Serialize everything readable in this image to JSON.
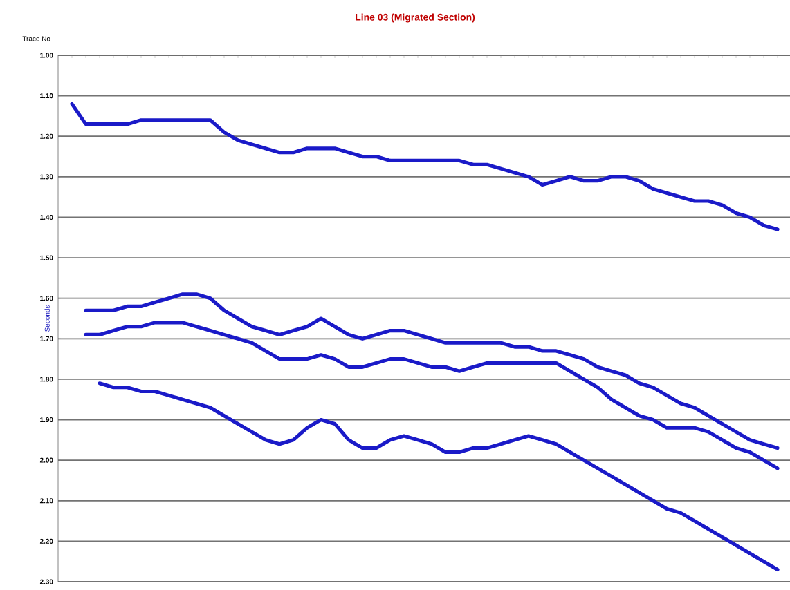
{
  "chart_data": {
    "type": "line",
    "title": "Line 03 (Migrated Section)",
    "xlabel": "Trace No",
    "ylabel": "Seconds",
    "categories": [
      null,
      null,
      null,
      null,
      null,
      null,
      null,
      null,
      null,
      null,
      null,
      null,
      null,
      null,
      null,
      null,
      null,
      null,
      null,
      null,
      null,
      null,
      null,
      null,
      null,
      null,
      null,
      null,
      null,
      null,
      null,
      null,
      null,
      null,
      null,
      null,
      null,
      null,
      null,
      null,
      null,
      null,
      null,
      null,
      null,
      null,
      null,
      null,
      null,
      null,
      null,
      null
    ],
    "ylim": [
      2.3,
      1.0
    ],
    "yticks": [
      {
        "value": 1.0,
        "label": "1.00"
      },
      {
        "value": 1.1,
        "label": "1.10"
      },
      {
        "value": 1.2,
        "label": "1.20"
      },
      {
        "value": 1.3,
        "label": "1.30"
      },
      {
        "value": 1.4,
        "label": "1.40"
      },
      {
        "value": 1.5,
        "label": "1.50"
      },
      {
        "value": 1.6,
        "label": "1.60"
      },
      {
        "value": 1.7,
        "label": "1.70"
      },
      {
        "value": 1.8,
        "label": "1.80"
      },
      {
        "value": 1.9,
        "label": "1.90"
      },
      {
        "value": 2.0,
        "label": "2.00"
      },
      {
        "value": 2.1,
        "label": "2.10"
      },
      {
        "value": 2.2,
        "label": "2.20"
      },
      {
        "value": 2.3,
        "label": "2.30"
      }
    ],
    "grid": "y",
    "marker": "none",
    "line_style": "solid",
    "series": [
      {
        "color": "#1a1ac8",
        "values": [
          1.12,
          1.17,
          1.17,
          1.17,
          1.17,
          1.16,
          1.16,
          1.16,
          1.16,
          1.16,
          1.16,
          1.19,
          1.21,
          1.22,
          1.23,
          1.24,
          1.24,
          1.23,
          1.23,
          1.23,
          1.24,
          1.25,
          1.25,
          1.26,
          1.26,
          1.26,
          1.26,
          1.26,
          1.26,
          1.27,
          1.27,
          1.28,
          1.29,
          1.3,
          1.32,
          1.31,
          1.3,
          1.31,
          1.31,
          1.3,
          1.3,
          1.31,
          1.33,
          1.34,
          1.35,
          1.36,
          1.36,
          1.37,
          1.39,
          1.4,
          1.42,
          1.43
        ]
      },
      {
        "color": "#1a1ac8",
        "values": [
          null,
          1.63,
          1.63,
          1.63,
          1.62,
          1.62,
          1.61,
          1.6,
          1.59,
          1.59,
          1.6,
          1.63,
          1.65,
          1.67,
          1.68,
          1.69,
          1.68,
          1.67,
          1.65,
          1.67,
          1.69,
          1.7,
          1.69,
          1.68,
          1.68,
          1.69,
          1.7,
          1.71,
          1.71,
          1.71,
          1.71,
          1.71,
          1.72,
          1.72,
          1.73,
          1.73,
          1.74,
          1.75,
          1.77,
          1.78,
          1.79,
          1.81,
          1.82,
          1.84,
          1.86,
          1.87,
          1.89,
          1.91,
          1.93,
          1.95,
          1.96,
          1.97
        ]
      },
      {
        "color": "#1a1ac8",
        "values": [
          null,
          1.69,
          1.69,
          1.68,
          1.67,
          1.67,
          1.66,
          1.66,
          1.66,
          1.67,
          1.68,
          1.69,
          1.7,
          1.71,
          1.73,
          1.75,
          1.75,
          1.75,
          1.74,
          1.75,
          1.77,
          1.77,
          1.76,
          1.75,
          1.75,
          1.76,
          1.77,
          1.77,
          1.78,
          1.77,
          1.76,
          1.76,
          1.76,
          1.76,
          1.76,
          1.76,
          1.78,
          1.8,
          1.82,
          1.85,
          1.87,
          1.89,
          1.9,
          1.92,
          1.92,
          1.92,
          1.93,
          1.95,
          1.97,
          1.98,
          2.0,
          2.02
        ]
      },
      {
        "color": "#1a1ac8",
        "values": [
          null,
          null,
          1.81,
          1.82,
          1.82,
          1.83,
          1.83,
          1.84,
          1.85,
          1.86,
          1.87,
          1.89,
          1.91,
          1.93,
          1.95,
          1.96,
          1.95,
          1.92,
          1.9,
          1.91,
          1.95,
          1.97,
          1.97,
          1.95,
          1.94,
          1.95,
          1.96,
          1.98,
          1.98,
          1.97,
          1.97,
          1.96,
          1.95,
          1.94,
          1.95,
          1.96,
          1.98,
          2.0,
          2.02,
          2.04,
          2.06,
          2.08,
          2.1,
          2.12,
          2.13,
          2.15,
          2.17,
          2.19,
          2.21,
          2.23,
          2.25,
          2.27
        ]
      }
    ]
  }
}
